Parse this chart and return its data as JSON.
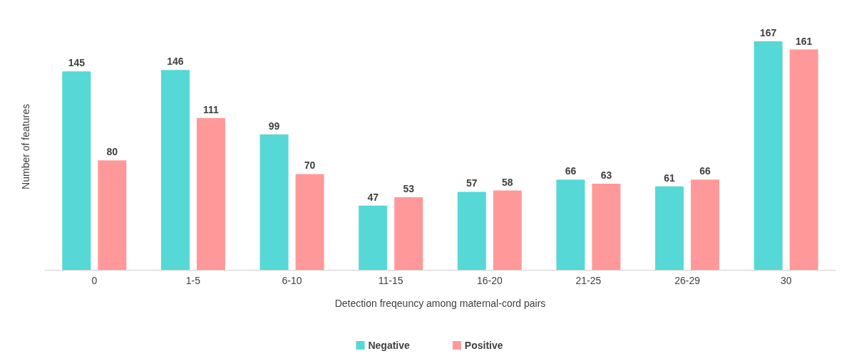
{
  "chart_data": {
    "type": "bar",
    "xlabel": "Detection freqeuncy among maternal-cord pairs",
    "ylabel": "Number of features",
    "categories": [
      "0",
      "1-5",
      "6-10",
      "11-15",
      "16-20",
      "21-25",
      "26-29",
      "30"
    ],
    "series": [
      {
        "name": "Negative",
        "color": "#56d8d6",
        "values": [
          145,
          146,
          99,
          47,
          57,
          66,
          61,
          167
        ]
      },
      {
        "name": "Positive",
        "color": "#ff9999",
        "values": [
          80,
          111,
          70,
          53,
          58,
          63,
          66,
          161
        ]
      }
    ],
    "data_labels": true,
    "legend": "bottom",
    "grid": false
  }
}
